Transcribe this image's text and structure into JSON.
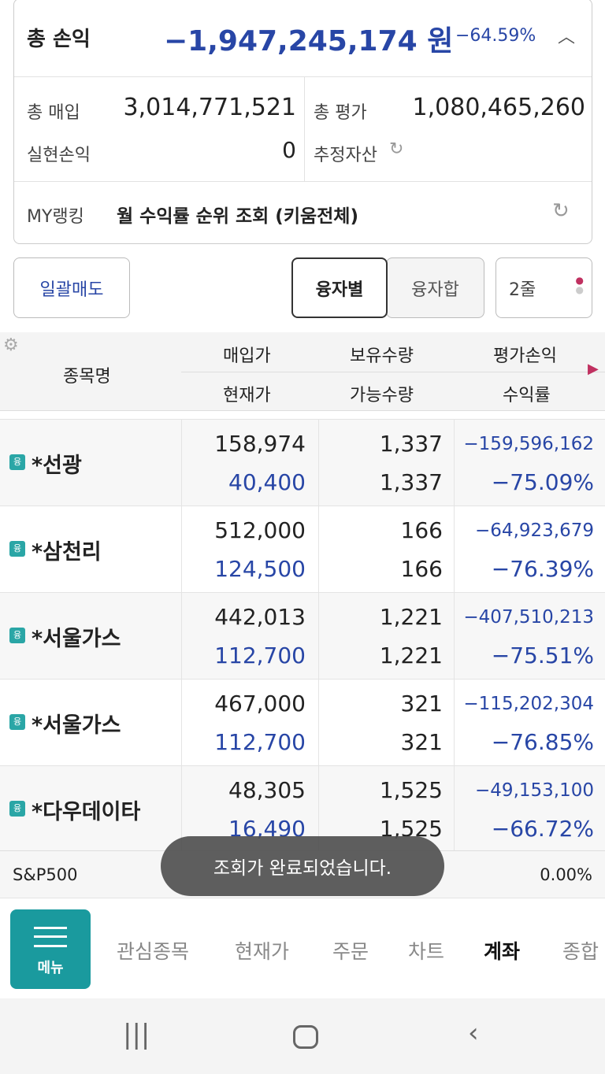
{
  "summary": {
    "title": "총 손익",
    "total_pl": "−1,947,245,174",
    "unit": "원",
    "total_rate": "−64.59%",
    "purchase_label": "총 매입",
    "purchase": "3,014,771,521",
    "eval_label": "총 평가",
    "eval": "1,080,465,260",
    "realized_label": "실현손익",
    "realized": "0",
    "estimate_label": "추정자산",
    "ranking_label": "MY랭킹",
    "ranking_text": "월 수익률 순위 조회 (키움전체)"
  },
  "controls": {
    "sell_all": "일괄매도",
    "tabs": [
      "융자별",
      "융자합"
    ],
    "lines": "2줄"
  },
  "table": {
    "headers": {
      "name": "종목명",
      "buy": "매입가",
      "current": "현재가",
      "qty": "보유수량",
      "avail": "가능수량",
      "pl": "평가손익",
      "rate": "수익률"
    },
    "rows": [
      {
        "badge": "융",
        "name": "*선광",
        "buy": "158,974",
        "current": "40,400",
        "qty": "1,337",
        "avail": "1,337",
        "pl": "−159,596,162",
        "rate": "−75.09%"
      },
      {
        "badge": "융",
        "name": "*삼천리",
        "buy": "512,000",
        "current": "124,500",
        "qty": "166",
        "avail": "166",
        "pl": "−64,923,679",
        "rate": "−76.39%"
      },
      {
        "badge": "융",
        "name": "*서울가스",
        "buy": "442,013",
        "current": "112,700",
        "qty": "1,221",
        "avail": "1,221",
        "pl": "−407,510,213",
        "rate": "−75.51%"
      },
      {
        "badge": "융",
        "name": "*서울가스",
        "buy": "467,000",
        "current": "112,700",
        "qty": "321",
        "avail": "321",
        "pl": "−115,202,304",
        "rate": "−76.85%"
      },
      {
        "badge": "융",
        "name": "*다우데이타",
        "buy": "48,305",
        "current": "16,490",
        "qty": "1,525",
        "avail": "1,525",
        "pl": "−49,153,100",
        "rate": "−66.72%"
      }
    ]
  },
  "index_bar": {
    "name": "S&P500",
    "rate": "0.00%"
  },
  "toast": "조회가 완료되었습니다.",
  "nav": {
    "menu": "메뉴",
    "items": [
      "관심종목",
      "현재가",
      "주문",
      "차트",
      "계좌",
      "종합"
    ]
  }
}
